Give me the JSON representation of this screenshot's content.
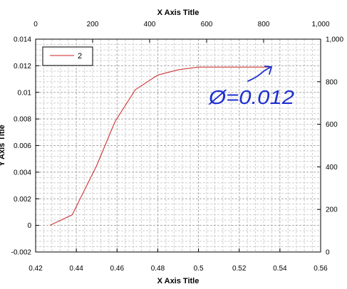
{
  "chart_data": {
    "type": "line",
    "title": "",
    "xlabel_bottom": "X Axis Title",
    "xlabel_top": "X Axis Title",
    "ylabel_left": "Y Axis Title",
    "ylabel_right": "",
    "xlim": [
      0.42,
      0.56
    ],
    "ylim": [
      -0.002,
      0.014
    ],
    "top_xlim": [
      0,
      1000
    ],
    "right_ylim": [
      0,
      1000
    ],
    "xticks": [
      0.42,
      0.44,
      0.46,
      0.48,
      0.5,
      0.52,
      0.54,
      0.56
    ],
    "xtick_labels": [
      "0.42",
      "0.44",
      "0.46",
      "0.48",
      "0.5",
      "0.52",
      "0.54",
      "0.56"
    ],
    "yticks": [
      -0.002,
      0,
      0.002,
      0.004,
      0.006,
      0.008,
      0.01,
      0.012,
      0.014
    ],
    "ytick_labels": [
      "-0.002",
      "0",
      "0.002",
      "0.004",
      "0.006",
      "0.008",
      "0.01",
      "0.012",
      "0.014"
    ],
    "top_xticks": [
      0,
      200,
      400,
      600,
      800,
      1000
    ],
    "top_xtick_labels": [
      "0",
      "200",
      "400",
      "600",
      "800",
      "1,000"
    ],
    "right_yticks": [
      0,
      200,
      400,
      600,
      800,
      1000
    ],
    "right_ytick_labels": [
      "0",
      "200",
      "400",
      "600",
      "800",
      "1,000"
    ],
    "grid": true,
    "legend_position": "top-left",
    "series": [
      {
        "name": "2",
        "color": "#cc2222",
        "x": [
          0.427,
          0.438,
          0.45,
          0.459,
          0.469,
          0.48,
          0.49,
          0.5,
          0.51,
          0.52,
          0.53,
          0.536
        ],
        "y": [
          0.0,
          0.0008,
          0.0045,
          0.0078,
          0.0102,
          0.0113,
          0.0117,
          0.0119,
          0.0119,
          0.0119,
          0.0119,
          0.0119
        ]
      }
    ],
    "annotation": {
      "text": "Ø=0.012",
      "color": "#1f2fd0"
    }
  }
}
